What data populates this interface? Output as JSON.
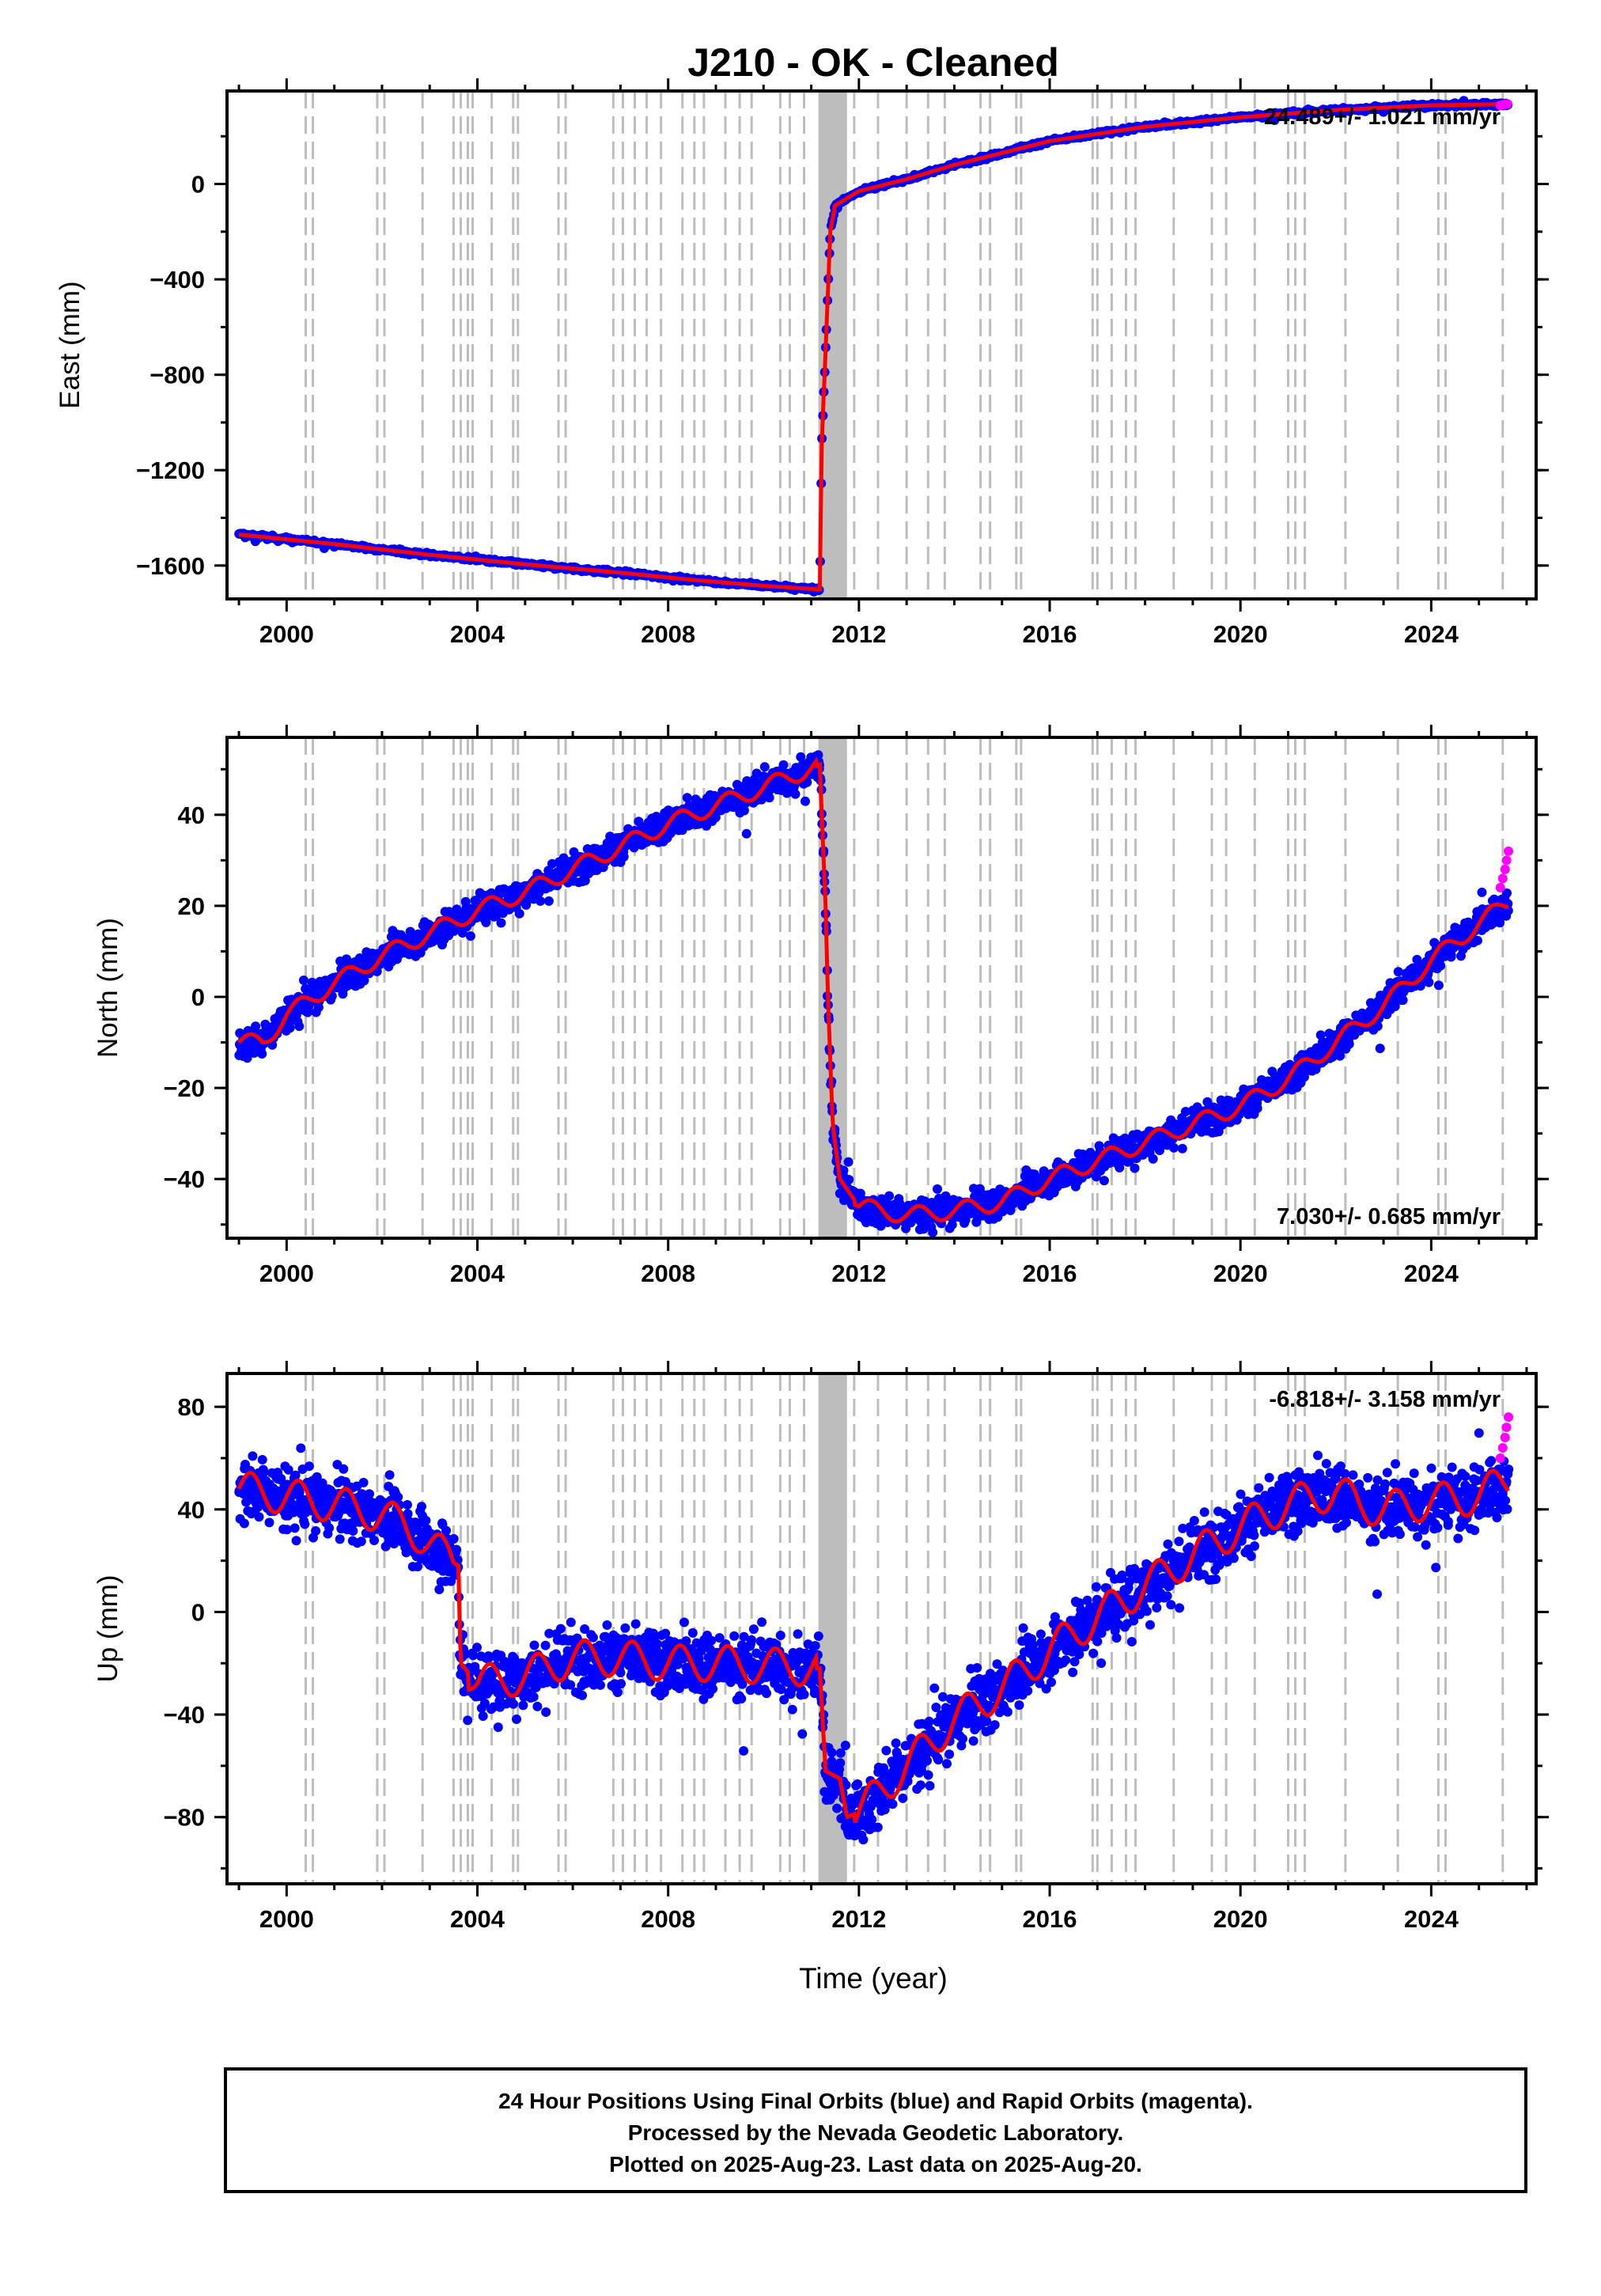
{
  "title": "J210  - OK - Cleaned",
  "colors": {
    "final_orbits": "#0000ff",
    "rapid_orbits": "#ff00ff",
    "model": "#ff0000",
    "events": "#bdbdbd",
    "frame": "#000000"
  },
  "chart_data": [
    {
      "type": "scatter",
      "panel": "east",
      "ylabel": "East (mm)",
      "xlim": [
        1998.75,
        2026.2
      ],
      "ylim": [
        -1740,
        390
      ],
      "yticks": [
        -1600,
        -1200,
        -800,
        -400,
        0
      ],
      "ytick_labels": [
        "−1600",
        "−1200",
        "−800",
        "−400",
        "0"
      ],
      "xticks": [
        2000,
        2004,
        2008,
        2012,
        2016,
        2020,
        2024
      ],
      "rate_label": "24.489+/- 1.021 mm/yr",
      "rate_position": "top-right",
      "scatter": 7,
      "model_knots": [
        [
          1999.0,
          -1470
        ],
        [
          2001.0,
          -1510
        ],
        [
          2003.0,
          -1555
        ],
        [
          2005.0,
          -1595
        ],
        [
          2007.0,
          -1630
        ],
        [
          2008.5,
          -1660
        ],
        [
          2010.0,
          -1685
        ],
        [
          2011.18,
          -1700
        ],
        [
          2011.22,
          -1100
        ],
        [
          2011.3,
          -700
        ],
        [
          2011.4,
          -200
        ],
        [
          2011.5,
          -90
        ],
        [
          2012.0,
          -30
        ],
        [
          2013.0,
          20
        ],
        [
          2014.0,
          80
        ],
        [
          2016.0,
          180
        ],
        [
          2018.0,
          240
        ],
        [
          2020.0,
          280
        ],
        [
          2022.0,
          310
        ],
        [
          2024.0,
          330
        ],
        [
          2025.6,
          335
        ]
      ],
      "rapid_points": [
        [
          2025.45,
          330
        ],
        [
          2025.5,
          332
        ],
        [
          2025.55,
          334
        ],
        [
          2025.6,
          336
        ]
      ]
    },
    {
      "type": "scatter",
      "panel": "north",
      "ylabel": "North (mm)",
      "xlim": [
        1998.75,
        2026.2
      ],
      "ylim": [
        -53,
        57
      ],
      "yticks": [
        -40,
        -20,
        0,
        20,
        40
      ],
      "ytick_labels": [
        "−40",
        "−20",
        "0",
        "20",
        "40"
      ],
      "xticks": [
        2000,
        2004,
        2008,
        2012,
        2016,
        2020,
        2024
      ],
      "rate_label": "7.030+/- 0.685 mm/yr",
      "rate_position": "bottom-right",
      "scatter": 2.6,
      "model_knots": [
        [
          1999.0,
          -10
        ],
        [
          1999.5,
          -10
        ],
        [
          2000.0,
          -4
        ],
        [
          2001.0,
          3
        ],
        [
          2002.0,
          9
        ],
        [
          2003.0,
          14
        ],
        [
          2004.0,
          19
        ],
        [
          2005.0,
          23
        ],
        [
          2006.0,
          28
        ],
        [
          2007.0,
          33
        ],
        [
          2008.0,
          38
        ],
        [
          2009.0,
          42
        ],
        [
          2010.0,
          46
        ],
        [
          2011.18,
          51
        ],
        [
          2011.3,
          20
        ],
        [
          2011.35,
          0
        ],
        [
          2011.45,
          -28
        ],
        [
          2011.6,
          -40
        ],
        [
          2012.0,
          -46
        ],
        [
          2013.0,
          -48
        ],
        [
          2014.0,
          -47
        ],
        [
          2015.0,
          -45
        ],
        [
          2016.0,
          -40
        ],
        [
          2017.0,
          -36
        ],
        [
          2018.0,
          -32
        ],
        [
          2019.0,
          -28
        ],
        [
          2020.0,
          -24
        ],
        [
          2021.0,
          -18
        ],
        [
          2022.0,
          -10
        ],
        [
          2023.0,
          -2
        ],
        [
          2024.0,
          8
        ],
        [
          2025.0,
          16
        ],
        [
          2025.62,
          21
        ]
      ],
      "rapid_points": [
        [
          2025.45,
          24
        ],
        [
          2025.5,
          26
        ],
        [
          2025.55,
          28
        ],
        [
          2025.58,
          30
        ],
        [
          2025.62,
          32
        ]
      ]
    },
    {
      "type": "scatter",
      "panel": "up",
      "ylabel": "Up (mm)",
      "xlim": [
        1998.75,
        2026.2
      ],
      "ylim": [
        -106,
        93
      ],
      "yticks": [
        -80,
        -40,
        0,
        40,
        80
      ],
      "ytick_labels": [
        "−80",
        "−40",
        "0",
        "40",
        "80"
      ],
      "xticks": [
        2000,
        2004,
        2008,
        2012,
        2016,
        2020,
        2024
      ],
      "rate_label": "-6.818+/- 3.158 mm/yr",
      "rate_position": "top-right",
      "scatter": 10,
      "model_knots": [
        [
          1999.0,
          48
        ],
        [
          2000.0,
          45
        ],
        [
          2001.0,
          42
        ],
        [
          2002.0,
          38
        ],
        [
          2002.8,
          30
        ],
        [
          2003.3,
          22
        ],
        [
          2003.6,
          18
        ],
        [
          2003.65,
          -20
        ],
        [
          2004.0,
          -28
        ],
        [
          2005.0,
          -25
        ],
        [
          2006.0,
          -18
        ],
        [
          2007.0,
          -18
        ],
        [
          2008.0,
          -20
        ],
        [
          2009.0,
          -20
        ],
        [
          2010.0,
          -21
        ],
        [
          2011.18,
          -22
        ],
        [
          2011.3,
          -62
        ],
        [
          2011.6,
          -65
        ],
        [
          2011.75,
          -80
        ],
        [
          2012.0,
          -78
        ],
        [
          2013.0,
          -60
        ],
        [
          2014.0,
          -42
        ],
        [
          2015.0,
          -30
        ],
        [
          2016.0,
          -15
        ],
        [
          2017.0,
          -2
        ],
        [
          2018.0,
          10
        ],
        [
          2019.0,
          22
        ],
        [
          2020.0,
          33
        ],
        [
          2021.0,
          42
        ],
        [
          2022.0,
          47
        ],
        [
          2022.5,
          42
        ],
        [
          2023.0,
          40
        ],
        [
          2024.0,
          43
        ],
        [
          2025.0,
          45
        ],
        [
          2025.62,
          52
        ]
      ],
      "rapid_points": [
        [
          2025.45,
          60
        ],
        [
          2025.5,
          64
        ],
        [
          2025.55,
          68
        ],
        [
          2025.58,
          72
        ],
        [
          2025.62,
          76
        ]
      ]
    }
  ],
  "event_lines": [
    2000.4,
    2000.55,
    2001.9,
    2002.05,
    2002.85,
    2003.5,
    2003.65,
    2003.8,
    2003.9,
    2004.3,
    2004.75,
    2004.85,
    2005.7,
    2005.85,
    2006.85,
    2007.05,
    2007.3,
    2007.55,
    2007.85,
    2008.3,
    2008.55,
    2008.75,
    2009.2,
    2009.5,
    2009.75,
    2010.35,
    2010.55,
    2010.85,
    2011.9,
    2012.4,
    2013.0,
    2013.45,
    2013.8,
    2014.55,
    2014.75,
    2015.3,
    2015.4,
    2016.9,
    2017.0,
    2017.3,
    2017.6,
    2017.8,
    2018.6,
    2019.4,
    2019.7,
    2020.3,
    2021.0,
    2021.15,
    2021.35,
    2022.2,
    2023.3,
    2024.15,
    2024.3,
    2025.5
  ],
  "event_band": [
    2011.15,
    2011.75
  ],
  "xlabel": "Time (year)",
  "footer": {
    "line1": "24 Hour Positions Using Final Orbits (blue) and Rapid Orbits (magenta).",
    "line2": "Processed by the Nevada Geodetic Laboratory.",
    "line3": "Plotted on 2025-Aug-23. Last data on 2025-Aug-20."
  }
}
